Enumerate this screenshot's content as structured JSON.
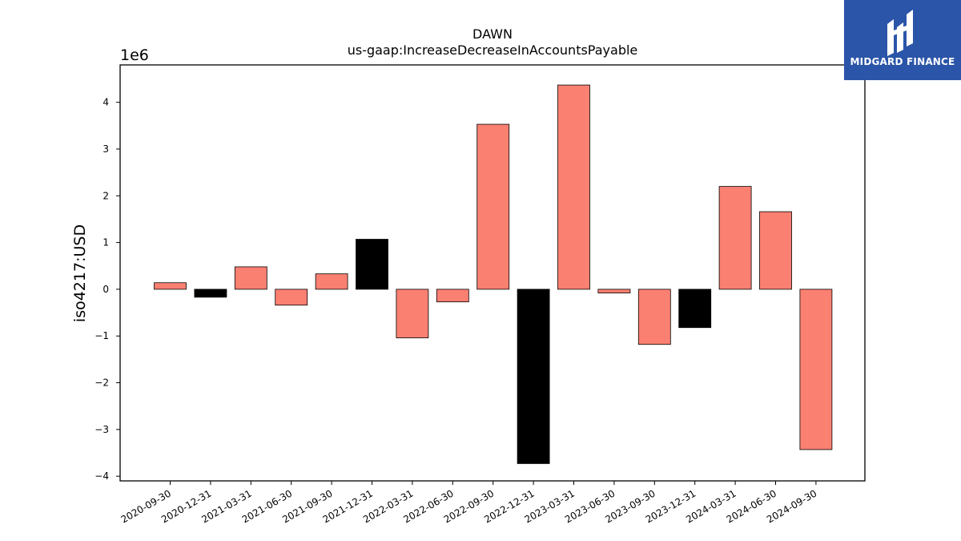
{
  "chart_data": {
    "type": "bar",
    "title": "DAWN",
    "subtitle": "us-gaap:IncreaseDecreaseInAccountsPayable",
    "ylabel": "iso4217:USD",
    "xlabel": "",
    "offset_label": "1e6",
    "ylim": [
      -4.1,
      4.8
    ],
    "yticks": [
      4,
      3,
      2,
      1,
      0,
      -1,
      -2,
      -3,
      -4
    ],
    "ytick_labels": [
      "4",
      "3",
      "2",
      "1",
      "0",
      "−1",
      "−2",
      "−3",
      "−4"
    ],
    "categories": [
      "2020-09-30",
      "2020-12-31",
      "2021-03-31",
      "2021-06-30",
      "2021-09-30",
      "2021-12-31",
      "2022-03-31",
      "2022-06-30",
      "2022-09-30",
      "2022-12-31",
      "2023-03-31",
      "2023-06-30",
      "2023-09-30",
      "2023-12-31",
      "2024-03-31",
      "2024-06-30",
      "2024-09-30"
    ],
    "values": [
      0.14,
      -0.17,
      0.48,
      -0.34,
      0.33,
      1.07,
      -1.04,
      -0.27,
      3.53,
      -3.73,
      4.37,
      -0.08,
      -1.18,
      -0.82,
      2.2,
      1.66,
      -3.43
    ],
    "bar_colors": [
      "#fa8072",
      "#000000",
      "#fa8072",
      "#fa8072",
      "#fa8072",
      "#000000",
      "#fa8072",
      "#fa8072",
      "#fa8072",
      "#000000",
      "#fa8072",
      "#fa8072",
      "#fa8072",
      "#000000",
      "#fa8072",
      "#fa8072",
      "#fa8072"
    ]
  },
  "logo": {
    "text": "MIDGARD FINANCE",
    "background": "#2b55a8"
  }
}
